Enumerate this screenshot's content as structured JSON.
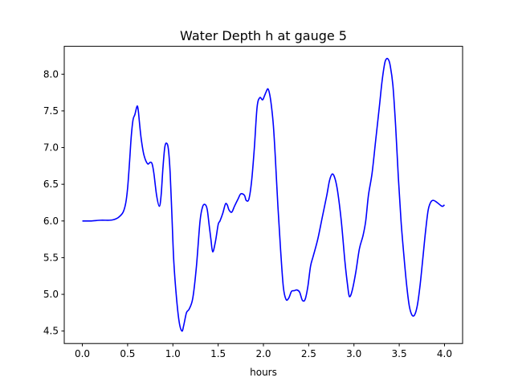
{
  "chart_data": {
    "type": "line",
    "title": "Water Depth h at gauge 5",
    "xlabel": "hours",
    "ylabel": "",
    "xlim": [
      -0.2,
      4.2
    ],
    "ylim": [
      4.33,
      8.38
    ],
    "xticks": [
      0.0,
      0.5,
      1.0,
      1.5,
      2.0,
      2.5,
      3.0,
      3.5,
      4.0
    ],
    "xtick_labels": [
      "0.0",
      "0.5",
      "1.0",
      "1.5",
      "2.0",
      "2.5",
      "3.0",
      "3.5",
      "4.0"
    ],
    "yticks": [
      4.5,
      5.0,
      5.5,
      6.0,
      6.5,
      7.0,
      7.5,
      8.0
    ],
    "ytick_labels": [
      "4.5",
      "5.0",
      "5.5",
      "6.0",
      "6.5",
      "7.0",
      "7.5",
      "8.0"
    ],
    "grid": false,
    "series": [
      {
        "color": "#0000ff",
        "x": [
          0.0,
          0.1,
          0.2,
          0.3,
          0.35,
          0.4,
          0.45,
          0.48,
          0.5,
          0.52,
          0.54,
          0.56,
          0.58,
          0.6,
          0.61,
          0.62,
          0.63,
          0.65,
          0.68,
          0.72,
          0.75,
          0.77,
          0.79,
          0.82,
          0.85,
          0.87,
          0.89,
          0.91,
          0.93,
          0.95,
          0.97,
          0.99,
          1.01,
          1.04,
          1.07,
          1.1,
          1.12,
          1.15,
          1.18,
          1.22,
          1.26,
          1.3,
          1.33,
          1.36,
          1.38,
          1.4,
          1.42,
          1.44,
          1.47,
          1.5,
          1.52,
          1.55,
          1.58,
          1.6,
          1.62,
          1.65,
          1.68,
          1.72,
          1.75,
          1.79,
          1.81,
          1.84,
          1.87,
          1.9,
          1.93,
          1.96,
          1.99,
          2.01,
          2.03,
          2.05,
          2.07,
          2.09,
          2.11,
          2.13,
          2.16,
          2.19,
          2.22,
          2.25,
          2.28,
          2.31,
          2.34,
          2.37,
          2.4,
          2.43,
          2.46,
          2.49,
          2.52,
          2.55,
          2.6,
          2.65,
          2.7,
          2.73,
          2.76,
          2.79,
          2.82,
          2.86,
          2.9,
          2.93,
          2.95,
          2.98,
          3.02,
          3.06,
          3.1,
          3.13,
          3.16,
          3.2,
          3.24,
          3.28,
          3.31,
          3.34,
          3.36,
          3.38,
          3.4,
          3.43,
          3.46,
          3.49,
          3.52,
          3.55,
          3.58,
          3.61,
          3.64,
          3.67,
          3.7,
          3.73,
          3.76,
          3.79,
          3.82,
          3.85,
          3.88,
          3.92,
          3.96,
          3.98,
          4.0
        ],
        "values": [
          6.0,
          6.0,
          6.01,
          6.01,
          6.02,
          6.05,
          6.12,
          6.25,
          6.45,
          6.78,
          7.15,
          7.38,
          7.45,
          7.55,
          7.56,
          7.48,
          7.35,
          7.12,
          6.9,
          6.78,
          6.8,
          6.78,
          6.65,
          6.35,
          6.2,
          6.35,
          6.72,
          7.0,
          7.06,
          6.98,
          6.65,
          6.05,
          5.45,
          4.95,
          4.62,
          4.5,
          4.58,
          4.75,
          4.8,
          4.95,
          5.38,
          6.0,
          6.2,
          6.22,
          6.15,
          5.95,
          5.75,
          5.58,
          5.72,
          5.95,
          6.0,
          6.1,
          6.23,
          6.22,
          6.15,
          6.12,
          6.2,
          6.3,
          6.37,
          6.35,
          6.28,
          6.3,
          6.55,
          7.0,
          7.55,
          7.68,
          7.65,
          7.7,
          7.76,
          7.8,
          7.72,
          7.55,
          7.3,
          6.9,
          6.2,
          5.6,
          5.1,
          4.93,
          4.95,
          5.04,
          5.05,
          5.06,
          5.03,
          4.92,
          4.93,
          5.1,
          5.38,
          5.52,
          5.75,
          6.05,
          6.35,
          6.55,
          6.64,
          6.58,
          6.4,
          6.0,
          5.45,
          5.12,
          4.97,
          5.05,
          5.3,
          5.62,
          5.8,
          6.0,
          6.35,
          6.65,
          7.1,
          7.55,
          7.9,
          8.15,
          8.21,
          8.2,
          8.12,
          7.85,
          7.3,
          6.6,
          6.0,
          5.55,
          5.15,
          4.85,
          4.72,
          4.72,
          4.85,
          5.12,
          5.48,
          5.85,
          6.15,
          6.26,
          6.28,
          6.25,
          6.21,
          6.2,
          6.22
        ]
      }
    ]
  }
}
